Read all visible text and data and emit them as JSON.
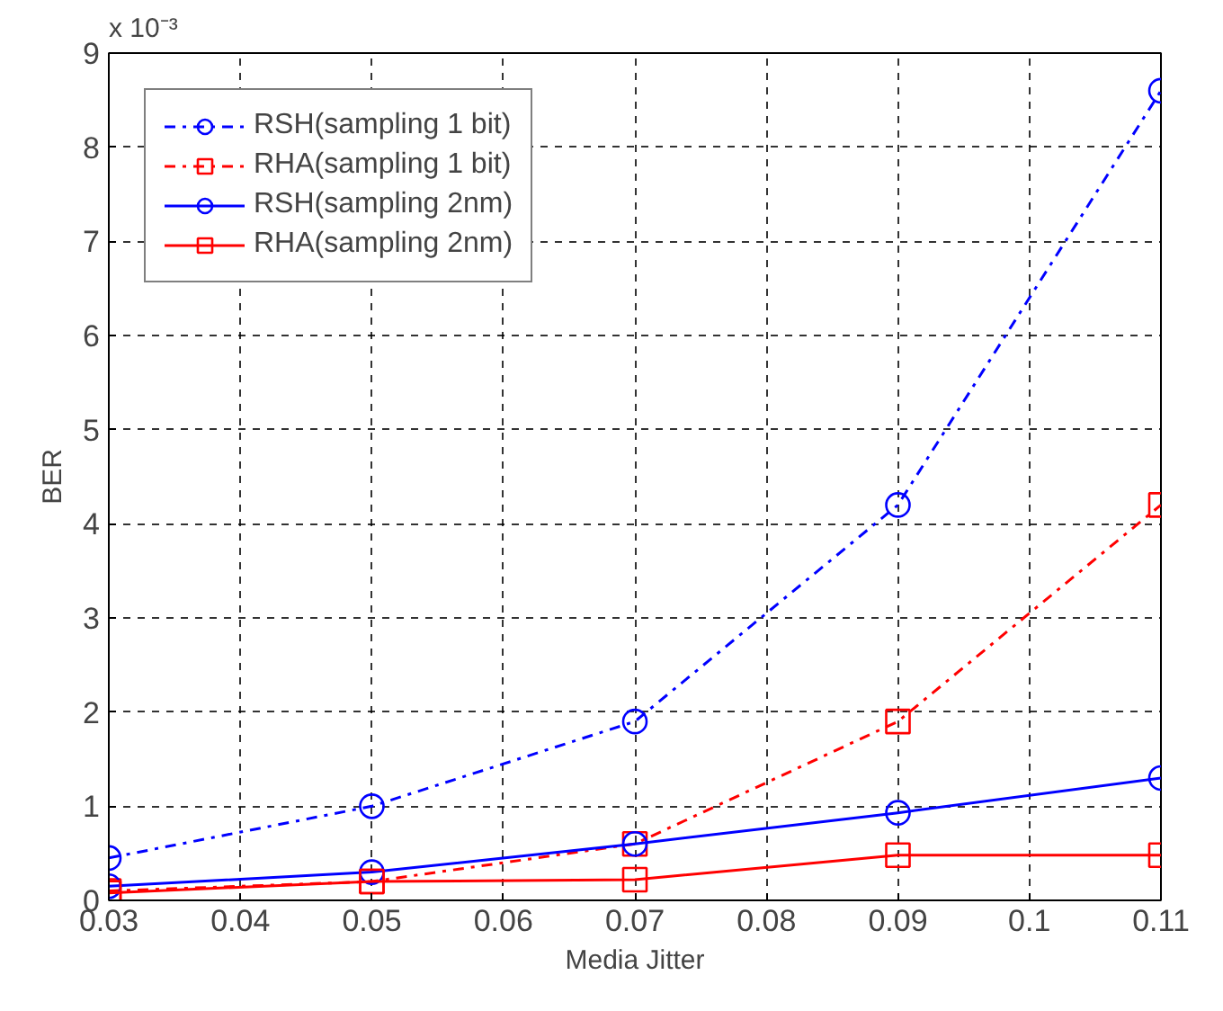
{
  "chart_data": {
    "type": "line",
    "xlabel": "Media Jitter",
    "ylabel": "BER",
    "annotations": [
      "x 10⁻³"
    ],
    "x": [
      0.03,
      0.05,
      0.07,
      0.09,
      0.11
    ],
    "series": [
      {
        "name": "RSH(sampling 1 bit)",
        "color": "#0000ff",
        "marker": "circle",
        "line_style": "dashdot",
        "values": [
          0.45,
          1.0,
          1.9,
          4.2,
          8.6
        ]
      },
      {
        "name": "RHA(sampling 1 bit)",
        "color": "#ff0000",
        "marker": "square",
        "line_style": "dashdot",
        "values": [
          0.1,
          0.2,
          0.6,
          1.9,
          4.2
        ]
      },
      {
        "name": "RSH(sampling 2nm)",
        "color": "#0000ff",
        "marker": "circle",
        "line_style": "solid",
        "values": [
          0.15,
          0.3,
          0.6,
          0.93,
          1.3
        ]
      },
      {
        "name": "RHA(sampling 2nm)",
        "color": "#ff0000",
        "marker": "square",
        "line_style": "solid",
        "values": [
          0.08,
          0.2,
          0.22,
          0.48,
          0.48
        ]
      }
    ],
    "xlim": [
      0.03,
      0.11
    ],
    "xticks": [
      0.03,
      0.04,
      0.05,
      0.06,
      0.07,
      0.08,
      0.09,
      {
        "value": 0.1,
        "label": "0.1"
      },
      0.11
    ],
    "ylim": [
      0,
      9
    ],
    "yticks": [
      0,
      1,
      2,
      3,
      4,
      5,
      6,
      7,
      8,
      9
    ],
    "grid": true,
    "legend": "top left"
  }
}
